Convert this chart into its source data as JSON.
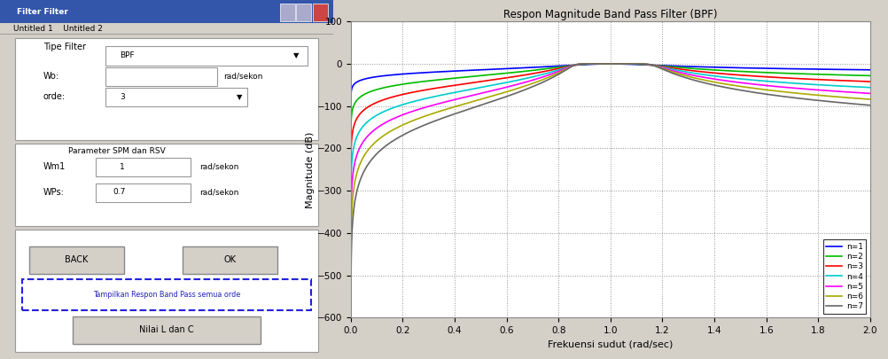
{
  "title": "Respon Magnitude Band Pass Filter (BPF)",
  "xlabel": "Frekuensi sudut (rad/sec)",
  "ylabel": "Magnitude (dB)",
  "xlim": [
    0,
    2
  ],
  "ylim": [
    -600,
    100
  ],
  "yticks": [
    100,
    0,
    -100,
    -200,
    -300,
    -400,
    -500,
    -600
  ],
  "xticks": [
    0,
    0.2,
    0.4,
    0.6,
    0.8,
    1.0,
    1.2,
    1.4,
    1.6,
    1.8,
    2.0
  ],
  "line_colors": [
    "#0000FF",
    "#00BB00",
    "#FF0000",
    "#00CCCC",
    "#FF00FF",
    "#AAAA00",
    "#666666"
  ],
  "line_labels": [
    "n=1",
    "n=2",
    "n=3",
    "n=4",
    "n=5",
    "n=6",
    "n=7"
  ],
  "panel_bg": "#D4D0C8",
  "plot_bg": "#FFFFFF",
  "titlebar_color": "#3355AA"
}
